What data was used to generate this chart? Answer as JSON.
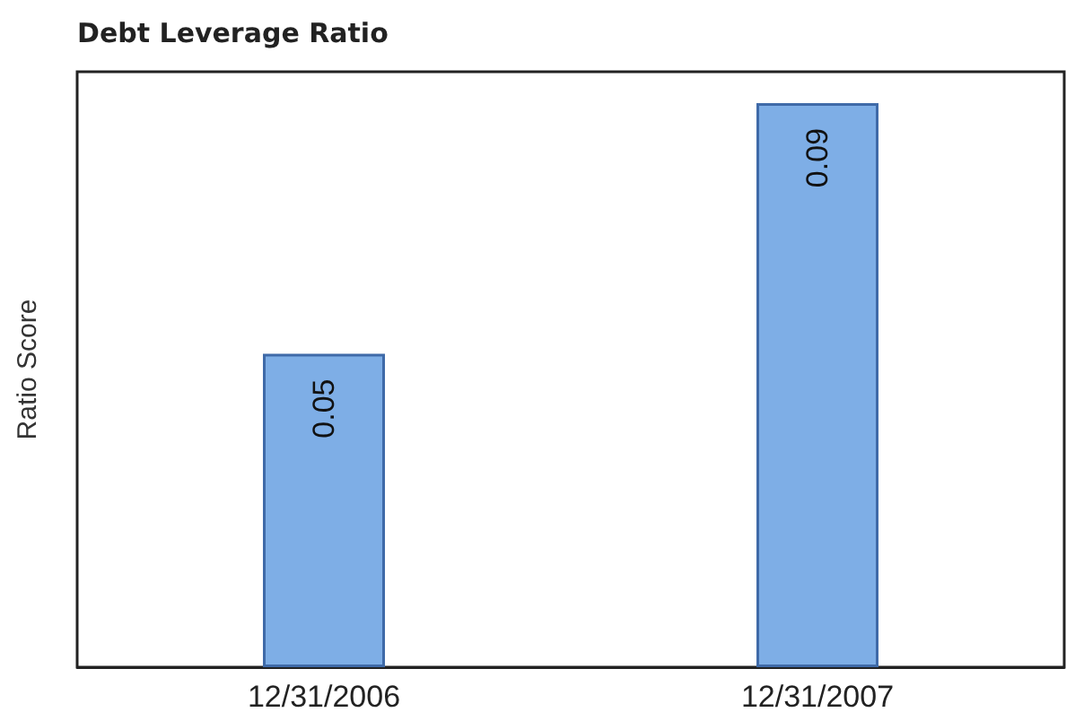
{
  "chart_data": {
    "type": "bar",
    "title": "Debt Leverage Ratio",
    "ylabel": "Ratio Score",
    "categories": [
      "12/31/2006",
      "12/31/2007"
    ],
    "values": [
      0.05,
      0.09
    ],
    "color": "#7eaee6",
    "ylim": [
      0,
      0.095
    ],
    "tick_labels": "x",
    "data_labels": true
  }
}
